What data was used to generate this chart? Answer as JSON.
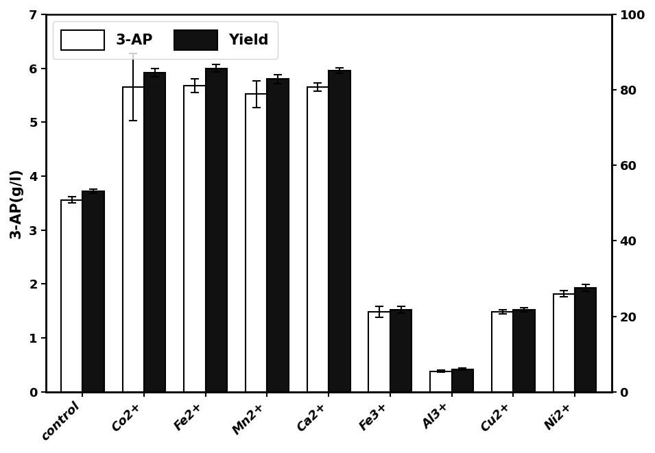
{
  "categories": [
    "control",
    "Co2+",
    "Fe2+",
    "Mn2+",
    "Ca2+",
    "Fe3+",
    "Al3+",
    "Cu2+",
    "Ni2+"
  ],
  "ap_values": [
    3.56,
    5.65,
    5.68,
    5.52,
    5.65,
    1.48,
    0.38,
    1.48,
    1.82
  ],
  "yield_values": [
    3.72,
    5.92,
    6.0,
    5.8,
    5.96,
    1.52,
    0.42,
    1.52,
    1.93
  ],
  "ap_errors": [
    0.06,
    0.62,
    0.13,
    0.25,
    0.08,
    0.1,
    0.02,
    0.04,
    0.06
  ],
  "yield_errors": [
    0.04,
    0.08,
    0.07,
    0.08,
    0.05,
    0.06,
    0.02,
    0.04,
    0.06
  ],
  "ylabel_left": "3-AP(g/l)",
  "ylim_left": [
    0,
    7
  ],
  "ylim_right": [
    0,
    100
  ],
  "yticks_left": [
    0,
    1,
    2,
    3,
    4,
    5,
    6,
    7
  ],
  "yticks_right": [
    0,
    20,
    40,
    60,
    80,
    100
  ],
  "legend_labels": [
    "3-AP",
    "Yield"
  ],
  "bar_width": 0.35,
  "bar_color_ap": "#ffffff",
  "bar_color_yield": "#111111",
  "edge_color": "#000000",
  "figsize": [
    9.55,
    6.61
  ],
  "dpi": 100,
  "font_size_axis": 15,
  "font_size_tick": 13,
  "font_size_legend": 15
}
